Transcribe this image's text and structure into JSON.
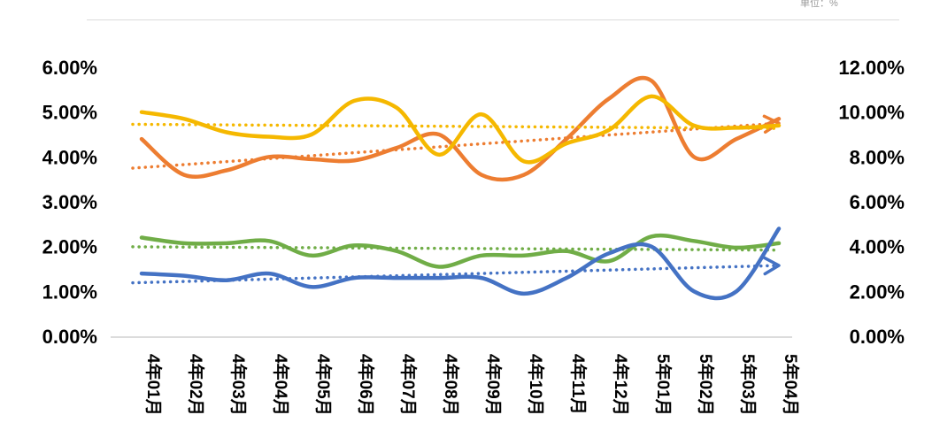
{
  "chart_data": {
    "type": "line",
    "unit_label": "单位：%",
    "categories": [
      "4年01月",
      "4年02月",
      "4年03月",
      "4年04月",
      "4年05月",
      "4年06月",
      "4年07月",
      "4年08月",
      "4年09月",
      "4年10月",
      "4年11月",
      "4年12月",
      "5年01月",
      "5年02月",
      "5年03月",
      "5年04月"
    ],
    "y_left": {
      "min": 0,
      "max": 6,
      "step": 1,
      "ticks": [
        "0.00%",
        "1.00%",
        "2.00%",
        "3.00%",
        "4.00%",
        "5.00%",
        "6.00%"
      ]
    },
    "y_right": {
      "min": 0,
      "max": 12,
      "step": 2,
      "ticks": [
        "0.00%",
        "2.00%",
        "4.00%",
        "6.00%",
        "8.00%",
        "10.00%",
        "12.00%"
      ]
    },
    "grid": false,
    "legend": "none",
    "series": [
      {
        "axis": "left",
        "color": "#ed7d31",
        "trend_arrow": true,
        "values": [
          4.4,
          3.6,
          3.7,
          4.0,
          3.95,
          3.92,
          4.2,
          4.5,
          3.6,
          3.6,
          4.4,
          5.3,
          5.7,
          4.0,
          4.4,
          4.85
        ]
      },
      {
        "axis": "left",
        "color": "#f5b800",
        "trend_arrow": false,
        "values": [
          5.0,
          4.85,
          4.55,
          4.45,
          4.5,
          5.25,
          5.1,
          4.05,
          4.95,
          3.9,
          4.3,
          4.6,
          5.35,
          4.7,
          4.65,
          4.7
        ]
      },
      {
        "axis": "right",
        "color": "#70ad47",
        "trend_arrow": false,
        "values": [
          4.4,
          4.15,
          4.15,
          4.25,
          3.6,
          4.05,
          3.8,
          3.1,
          3.6,
          3.6,
          3.8,
          3.35,
          4.45,
          4.25,
          3.95,
          4.15
        ]
      },
      {
        "axis": "right",
        "color": "#4472c4",
        "trend_arrow": true,
        "values": [
          2.8,
          2.7,
          2.5,
          2.8,
          2.2,
          2.6,
          2.6,
          2.6,
          2.6,
          1.9,
          2.6,
          3.7,
          4.0,
          2.0,
          2.0,
          4.8
        ]
      }
    ]
  }
}
